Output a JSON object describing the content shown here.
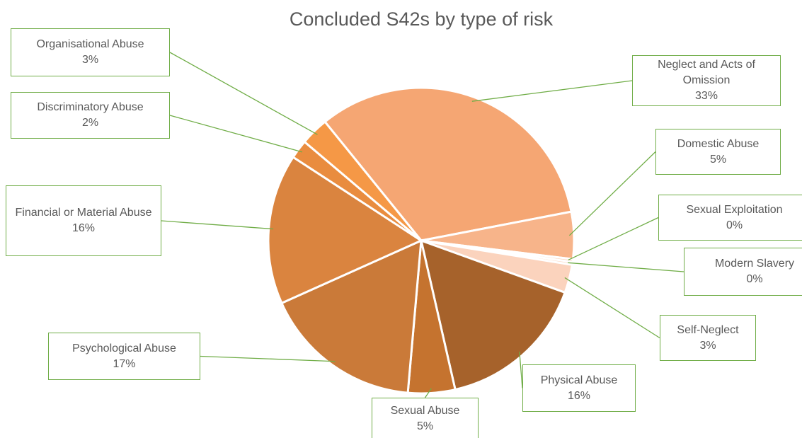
{
  "chart_data": {
    "type": "pie",
    "title": "Concluded S42s by type of risk",
    "categories": [
      "Neglect and Acts of Omission",
      "Domestic Abuse",
      "Sexual Exploitation",
      "Modern Slavery",
      "Self-Neglect",
      "Physical Abuse",
      "Sexual Abuse",
      "Psychological Abuse",
      "Financial or Material Abuse",
      "Discriminatory Abuse",
      "Organisational Abuse"
    ],
    "values": [
      33,
      5,
      0.3,
      0.3,
      3,
      16,
      5,
      17,
      16,
      2,
      3
    ],
    "value_labels": [
      "33%",
      "5%",
      "0%",
      "0%",
      "3%",
      "16%",
      "5%",
      "17%",
      "16%",
      "2%",
      "3%"
    ],
    "colors": [
      "#f5a673",
      "#f7b48a",
      "#fbd0b5",
      "#fcdcc8",
      "#fbd3bd",
      "#a6622b",
      "#c5732f",
      "#ca7a39",
      "#da843f",
      "#e98c3f",
      "#f59846"
    ]
  }
}
